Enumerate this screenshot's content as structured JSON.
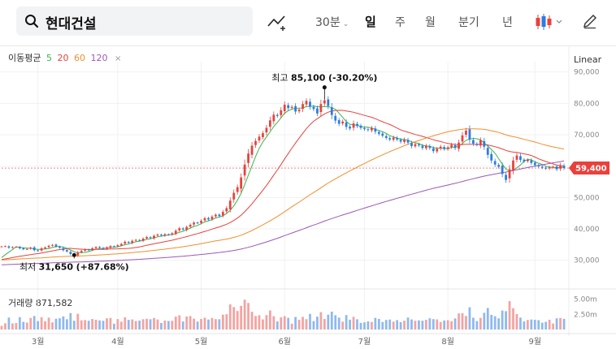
{
  "search": {
    "query": "현대건설"
  },
  "periods": {
    "min30": "30분",
    "day": "일",
    "week": "주",
    "month": "월",
    "quarter": "분기",
    "year": "년",
    "active": "day"
  },
  "icons": {
    "search": "search-icon",
    "draw": "trend-line-add-icon",
    "candle": "candlestick-type-icon",
    "pencil": "pencil-icon"
  },
  "legend": {
    "title": "이동평균",
    "ma": [
      {
        "label": "5",
        "color": "#3cb44b"
      },
      {
        "label": "20",
        "color": "#e8413c"
      },
      {
        "label": "60",
        "color": "#f28e2b"
      },
      {
        "label": "120",
        "color": "#9b59b6"
      }
    ],
    "close_mark": "×"
  },
  "scale_mode": "Linear",
  "annotations": {
    "high": {
      "prefix": "최고",
      "value": "85,100",
      "change": "(-30.20%)"
    },
    "low": {
      "prefix": "최저",
      "value": "31,650",
      "change": "(+87.68%)"
    }
  },
  "current_price": {
    "label": "59,400",
    "color": "#e8413c"
  },
  "volume": {
    "title": "거래량",
    "value": "871,582",
    "axis": [
      "5.00m",
      "2.50m"
    ]
  },
  "colors": {
    "up": "#e8413c",
    "down": "#2b7ce0",
    "grid": "#f1f1f1"
  },
  "chart_data": {
    "type": "candlestick",
    "price_axis": {
      "min": 25000,
      "max": 92000,
      "ticks": [
        30000,
        40000,
        50000,
        60000,
        70000,
        80000,
        90000
      ],
      "tick_labels": [
        "30,000",
        "40,000",
        "50,000",
        "60,000",
        "70,000",
        "80,000",
        "90,000"
      ]
    },
    "months": [
      "3월",
      "4월",
      "5월",
      "6월",
      "7월",
      "8월",
      "9월"
    ],
    "month_start_index": [
      10,
      32,
      55,
      78,
      100,
      123,
      147
    ],
    "closes": [
      34400,
      34500,
      34000,
      34200,
      34300,
      33800,
      33500,
      33600,
      34000,
      33200,
      33000,
      33800,
      34100,
      34600,
      34900,
      34400,
      34000,
      33200,
      32800,
      32000,
      31650,
      32500,
      33000,
      33400,
      33200,
      33800,
      34200,
      34000,
      33600,
      34100,
      34500,
      34400,
      34800,
      35200,
      35900,
      35600,
      36200,
      36500,
      36300,
      36900,
      37400,
      37100,
      37800,
      38200,
      37900,
      38300,
      38100,
      38600,
      39400,
      40200,
      39800,
      40600,
      41300,
      42000,
      41800,
      42600,
      43400,
      43000,
      43900,
      44500,
      44100,
      45400,
      46600,
      49000,
      51500,
      53300,
      56400,
      60500,
      64000,
      66500,
      68000,
      69400,
      70500,
      72200,
      74600,
      76400,
      76000,
      77800,
      79600,
      78500,
      78900,
      77400,
      78000,
      79800,
      80800,
      79000,
      78200,
      76800,
      79800,
      81000,
      79200,
      76300,
      74500,
      73500,
      74200,
      72500,
      72000,
      73600,
      72800,
      72200,
      71800,
      71500,
      72200,
      71000,
      70300,
      69700,
      69000,
      68500,
      69100,
      68500,
      67800,
      68500,
      67500,
      66400,
      67000,
      66600,
      65800,
      66500,
      65800,
      64800,
      65500,
      66200,
      65500,
      66000,
      66800,
      65800,
      67500,
      69800,
      71300,
      68500,
      67200,
      66800,
      68300,
      66200,
      63600,
      61800,
      60500,
      59800,
      57500,
      55600,
      59000,
      61800,
      63400,
      62000,
      61500,
      62000,
      61000,
      60300,
      59900,
      59500,
      59200,
      59600,
      59800,
      59000,
      60300,
      59400
    ],
    "ma_series": {
      "ma5": "derived from closes (5-day)",
      "ma20": "derived from closes (20-day)",
      "ma60": "derived from closes (60-day)",
      "ma120": "derived from closes (120-day)"
    },
    "volume_axis": {
      "max": 6000000,
      "ticks": [
        2500000,
        5000000
      ]
    }
  }
}
